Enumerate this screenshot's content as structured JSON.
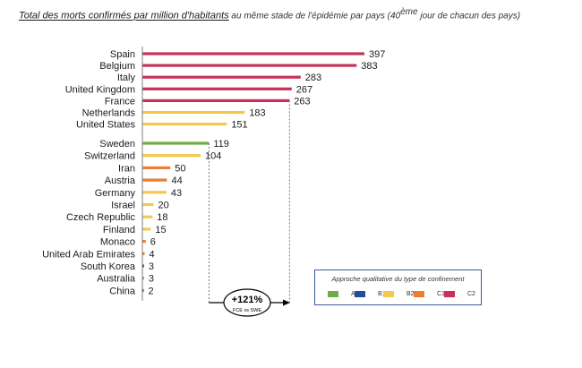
{
  "title": {
    "main": "Total des morts confirmés par million d'habitants",
    "sub_before": " au même stade de l'épidémie par pays (40",
    "sup": "ème",
    "sub_after": " jour de chacun des pays)"
  },
  "colors": {
    "A": "#70ad47",
    "B1": "#1f4e9a",
    "B2": "#f2c94c",
    "C1": "#ed7d31",
    "C2": "#c8325a"
  },
  "legend": {
    "title": "Approche qualitative du type de confinement",
    "items": [
      {
        "key": "A",
        "label": "A"
      },
      {
        "key": "B1",
        "label": "B1"
      },
      {
        "key": "B2",
        "label": "B2"
      },
      {
        "key": "C1",
        "label": "C1"
      },
      {
        "key": "C2",
        "label": "C2"
      }
    ]
  },
  "annotation": {
    "value": "+121%",
    "caption": "FCE vs SWE"
  },
  "chart_data": {
    "type": "bar",
    "orientation": "horizontal",
    "xlim": [
      0,
      397
    ],
    "categories": [
      "Spain",
      "Belgium",
      "Italy",
      "United Kingdom",
      "France",
      "Netherlands",
      "United States",
      "Sweden",
      "Switzerland",
      "Iran",
      "Austria",
      "Germany",
      "Israel",
      "Czech Republic",
      "Finland",
      "Monaco",
      "United Arab Emirates",
      "South Korea",
      "Australia",
      "China"
    ],
    "values": [
      397,
      383,
      283,
      267,
      263,
      183,
      151,
      119,
      104,
      50,
      44,
      43,
      20,
      18,
      15,
      6,
      4,
      3,
      3,
      2
    ],
    "groups": [
      "C2",
      "C2",
      "C2",
      "C2",
      "C2",
      "B2",
      "B2",
      "A",
      "B2",
      "C1",
      "C1",
      "B2",
      "B2",
      "B2",
      "B2",
      "C1",
      "C1",
      "B1",
      "C1",
      "B1"
    ],
    "value_labels": [
      "397",
      "383",
      "283",
      "267",
      "263",
      "183",
      "151",
      "119",
      "104",
      "50",
      "44",
      "43",
      "20",
      "18",
      "15",
      "6",
      "4",
      "3",
      "3",
      "2"
    ]
  }
}
